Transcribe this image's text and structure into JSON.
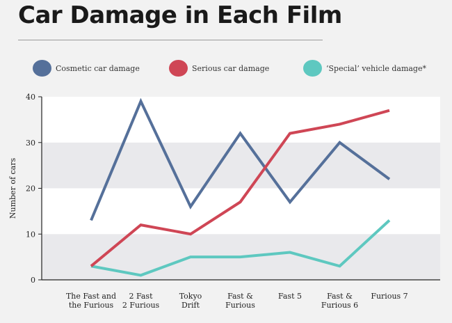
{
  "title": "Car Damage in Each Film",
  "chart_data": {
    "type": "line",
    "title": "Car Damage in Each Film",
    "ylabel": "Number of cars",
    "xlabel": "",
    "ylim": [
      0,
      40
    ],
    "yticks": [
      0,
      10,
      20,
      30,
      40
    ],
    "grid": "alternating horizontal bands",
    "legend": "top",
    "categories": [
      [
        "The Fast and",
        "the Furious"
      ],
      [
        "2 Fast",
        "2 Furious"
      ],
      [
        "Tokyo",
        "Drift"
      ],
      [
        "Fast &",
        "Furious"
      ],
      [
        "Fast 5"
      ],
      [
        "Fast &",
        "Furious 6"
      ],
      [
        "Furious 7"
      ]
    ],
    "series": [
      {
        "name": "Cosmetic car damage",
        "color": "#55709a",
        "values": [
          13,
          39,
          16,
          32,
          17,
          30,
          22
        ]
      },
      {
        "name": "Serious car damage",
        "color": "#cf4655",
        "values": [
          3,
          12,
          10,
          17,
          32,
          34,
          37
        ]
      },
      {
        "name": "‘Special’ vehicle damage*",
        "color": "#5ec8c0",
        "values": [
          3,
          1,
          5,
          5,
          6,
          3,
          13
        ]
      }
    ]
  }
}
